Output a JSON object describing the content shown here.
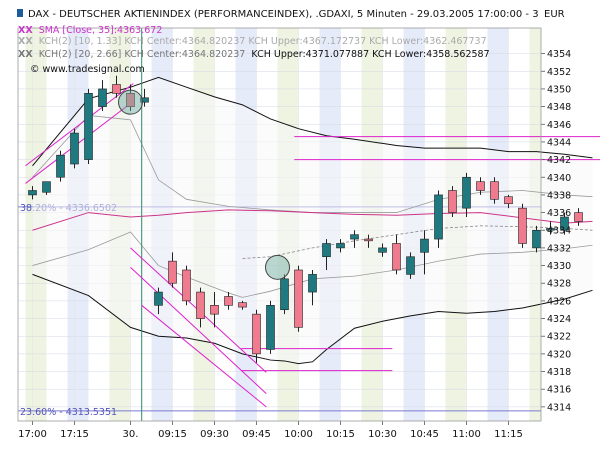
{
  "chart_data": {
    "type": "candlestick",
    "title": "DAX - DEUTSCHER AKTIENINDEX (PERFORMANCEINDEX), .GDAXI, 5 Minuten - 29.03.2005 17:00:00 - 3",
    "currency": "EUR",
    "legend": [
      {
        "label": "SMA [Close, 35]:4363.672",
        "color": "#cc33cc"
      },
      {
        "label": "KCH(2) [10, 1.33] KCH Center:4364.820237 KCH Upper:4367.172737 KCH Lower:4362.467737",
        "color": "#aaaaaa"
      },
      {
        "label": "KCH(2) [20, 2.66] KCH Center:4364.820237",
        "color": "#777777",
        "extra": "KCH Upper:4371.077887 KCH Lower:4358.562587"
      }
    ],
    "watermark": "© www.tradesignal.com",
    "y_ticks": [
      4314,
      4316,
      4318,
      4320,
      4322,
      4324,
      4326,
      4328,
      4330,
      4332,
      4334,
      4336,
      4338,
      4340,
      4342,
      4344,
      4346,
      4348,
      4350,
      4352,
      4354
    ],
    "ylim": [
      4312.4,
      4356.9
    ],
    "x_ticks": [
      {
        "label": "17:00",
        "x": 0
      },
      {
        "label": "17:15",
        "x": 3
      },
      {
        "label": "30.",
        "x": 7
      },
      {
        "label": "09:15",
        "x": 10
      },
      {
        "label": "09:30",
        "x": 13
      },
      {
        "label": "09:45",
        "x": 16
      },
      {
        "label": "10:00",
        "x": 19
      },
      {
        "label": "10:15",
        "x": 22
      },
      {
        "label": "10:30",
        "x": 25
      },
      {
        "label": "10:45",
        "x": 28
      },
      {
        "label": "11:00",
        "x": 31
      },
      {
        "label": "11:15",
        "x": 34
      }
    ],
    "fib_levels": [
      {
        "label": "38.20% - 4336.6502",
        "y": 4336.65
      },
      {
        "label": "23.60% - 4313.5351",
        "y": 4313.54
      }
    ],
    "candles": [
      {
        "o": 4338.0,
        "h": 4339.0,
        "l": 4337.5,
        "c": 4338.5
      },
      {
        "o": 4338.3,
        "h": 4339.5,
        "l": 4338.0,
        "c": 4339.5
      },
      {
        "o": 4340.0,
        "h": 4343.0,
        "l": 4339.5,
        "c": 4342.5
      },
      {
        "o": 4341.5,
        "h": 4345.5,
        "l": 4341.0,
        "c": 4345.0
      },
      {
        "o": 4342.0,
        "h": 4350.0,
        "l": 4341.5,
        "c": 4349.5
      },
      {
        "o": 4348.0,
        "h": 4351.0,
        "l": 4347.5,
        "c": 4350.0
      },
      {
        "o": 4350.5,
        "h": 4351.5,
        "l": 4349.0,
        "c": 4349.5
      },
      {
        "o": 4349.5,
        "h": 4350.5,
        "l": 4347.5,
        "c": 4348.0
      },
      {
        "o": 4348.5,
        "h": 4350.0,
        "l": 4348.0,
        "c": 4349.0
      },
      {
        "o": 4325.5,
        "h": 4327.5,
        "l": 4324.5,
        "c": 4327.0
      },
      {
        "o": 4330.5,
        "h": 4331.5,
        "l": 4327.5,
        "c": 4328.0
      },
      {
        "o": 4329.5,
        "h": 4330.0,
        "l": 4325.5,
        "c": 4326.0
      },
      {
        "o": 4327.0,
        "h": 4327.5,
        "l": 4323.0,
        "c": 4324.0
      },
      {
        "o": 4325.5,
        "h": 4327.0,
        "l": 4323.0,
        "c": 4324.5
      },
      {
        "o": 4326.5,
        "h": 4327.0,
        "l": 4325.0,
        "c": 4325.5
      },
      {
        "o": 4325.8,
        "h": 4326.0,
        "l": 4325.0,
        "c": 4325.3
      },
      {
        "o": 4324.5,
        "h": 4325.0,
        "l": 4319.0,
        "c": 4320.0
      },
      {
        "o": 4320.5,
        "h": 4326.0,
        "l": 4320.0,
        "c": 4325.5
      },
      {
        "o": 4325.0,
        "h": 4329.0,
        "l": 4324.5,
        "c": 4328.5
      },
      {
        "o": 4329.5,
        "h": 4330.0,
        "l": 4322.5,
        "c": 4323.0
      },
      {
        "o": 4327.0,
        "h": 4329.5,
        "l": 4325.5,
        "c": 4329.0
      },
      {
        "o": 4331.0,
        "h": 4333.0,
        "l": 4329.5,
        "c": 4332.5
      },
      {
        "o": 4332.0,
        "h": 4333.0,
        "l": 4331.5,
        "c": 4332.5
      },
      {
        "o": 4333.0,
        "h": 4334.0,
        "l": 4332.0,
        "c": 4333.5
      },
      {
        "o": 4333.0,
        "h": 4333.5,
        "l": 4332.0,
        "c": 4332.8
      },
      {
        "o": 4331.5,
        "h": 4332.5,
        "l": 4331.0,
        "c": 4332.0
      },
      {
        "o": 4332.5,
        "h": 4333.5,
        "l": 4329.0,
        "c": 4329.5
      },
      {
        "o": 4329.0,
        "h": 4331.5,
        "l": 4328.5,
        "c": 4331.0
      },
      {
        "o": 4331.5,
        "h": 4334.0,
        "l": 4329.0,
        "c": 4333.0
      },
      {
        "o": 4333.0,
        "h": 4338.5,
        "l": 4332.0,
        "c": 4338.0
      },
      {
        "o": 4338.5,
        "h": 4339.0,
        "l": 4335.5,
        "c": 4336.0
      },
      {
        "o": 4336.5,
        "h": 4340.5,
        "l": 4335.5,
        "c": 4340.0
      },
      {
        "o": 4339.5,
        "h": 4340.0,
        "l": 4338.0,
        "c": 4338.5
      },
      {
        "o": 4339.5,
        "h": 4340.0,
        "l": 4337.0,
        "c": 4337.5
      },
      {
        "o": 4337.8,
        "h": 4338.0,
        "l": 4336.5,
        "c": 4337.0
      },
      {
        "o": 4336.5,
        "h": 4337.0,
        "l": 4332.0,
        "c": 4332.5
      },
      {
        "o": 4332.0,
        "h": 4334.5,
        "l": 4331.5,
        "c": 4334.0
      },
      {
        "o": 4334.0,
        "h": 4335.0,
        "l": 4333.5,
        "c": 4334.2
      },
      {
        "o": 4334.0,
        "h": 4336.0,
        "l": 4333.5,
        "c": 4335.5
      },
      {
        "o": 4336.0,
        "h": 4336.5,
        "l": 4334.5,
        "c": 4335.0
      }
    ],
    "sma": [
      [
        0,
        4334
      ],
      [
        4,
        4336
      ],
      [
        7,
        4335.5
      ],
      [
        9,
        4335.7
      ],
      [
        11,
        4336
      ],
      [
        14,
        4336.3
      ],
      [
        17,
        4336.2
      ],
      [
        20,
        4336
      ],
      [
        23,
        4335.8
      ],
      [
        26,
        4335.7
      ],
      [
        29,
        4335.9
      ],
      [
        32,
        4336
      ],
      [
        35,
        4335.4
      ],
      [
        38,
        4334.8
      ],
      [
        40,
        4335
      ]
    ],
    "kch_upper_1": [
      [
        0,
        4340
      ],
      [
        4,
        4347
      ],
      [
        7,
        4346.5
      ],
      [
        9,
        4339.7
      ],
      [
        11,
        4337.5
      ],
      [
        14,
        4336.7
      ],
      [
        17,
        4336.3
      ],
      [
        20,
        4336
      ],
      [
        23,
        4336
      ],
      [
        26,
        4336
      ],
      [
        29,
        4337.5
      ],
      [
        32,
        4338.3
      ],
      [
        35,
        4338.5
      ],
      [
        38,
        4338
      ],
      [
        40,
        4337.8
      ]
    ],
    "kch_lower_1": [
      [
        0,
        4330
      ],
      [
        4,
        4331.8
      ],
      [
        7,
        4333.8
      ],
      [
        9,
        4330
      ],
      [
        11,
        4328.7
      ],
      [
        14,
        4326.9
      ],
      [
        15,
        4326.4
      ],
      [
        17,
        4327.1
      ],
      [
        20,
        4328.5
      ],
      [
        23,
        4328.8
      ],
      [
        26,
        4329.5
      ],
      [
        29,
        4330.5
      ],
      [
        32,
        4331.3
      ],
      [
        35,
        4331.5
      ],
      [
        38,
        4331.9
      ],
      [
        40,
        4332.3
      ]
    ],
    "kch_center": [
      [
        15,
        4330.8
      ],
      [
        17,
        4331
      ],
      [
        20,
        4332
      ],
      [
        23,
        4332.8
      ],
      [
        26,
        4333.5
      ],
      [
        29,
        4334.2
      ],
      [
        32,
        4334.5
      ],
      [
        35,
        4334.4
      ],
      [
        38,
        4334.2
      ],
      [
        40,
        4334
      ]
    ],
    "kch_upper_2": [
      [
        0,
        4341.3
      ],
      [
        4,
        4348.9
      ],
      [
        7,
        4350.2
      ],
      [
        9,
        4351.3
      ],
      [
        11,
        4350.2
      ],
      [
        13,
        4349.1
      ],
      [
        15,
        4348.2
      ],
      [
        17,
        4346.6
      ],
      [
        19,
        4345.5
      ],
      [
        21,
        4344.7
      ],
      [
        23,
        4344.3
      ],
      [
        26,
        4343.6
      ],
      [
        28,
        4343.3
      ],
      [
        30,
        4343.3
      ],
      [
        32,
        4343.3
      ],
      [
        34,
        4342.9
      ],
      [
        36,
        4342.9
      ],
      [
        38,
        4342.6
      ],
      [
        40,
        4342.2
      ]
    ],
    "kch_lower_2": [
      [
        0,
        4329
      ],
      [
        4,
        4326.6
      ],
      [
        7,
        4323
      ],
      [
        9,
        4322
      ],
      [
        11,
        4321.8
      ],
      [
        13,
        4321.2
      ],
      [
        15,
        4320
      ],
      [
        17,
        4319.3
      ],
      [
        18,
        4319.2
      ],
      [
        19,
        4318.9
      ],
      [
        20,
        4319.1
      ],
      [
        21,
        4320.5
      ],
      [
        23,
        4322.9
      ],
      [
        25,
        4323.7
      ],
      [
        27,
        4324.3
      ],
      [
        29,
        4324.8
      ],
      [
        31,
        4324.6
      ],
      [
        33,
        4324.8
      ],
      [
        35,
        4325.2
      ],
      [
        38,
        4326.2
      ],
      [
        40,
        4327.2
      ]
    ],
    "trend_lines": [
      {
        "x1": -0.5,
        "y1": 4341.3,
        "x2": 7.2,
        "y2": 4350.6
      },
      {
        "x1": -0.5,
        "y1": 4339.3,
        "x2": 7.2,
        "y2": 4348.6
      },
      {
        "x1": 7.0,
        "y1": 4332.0,
        "x2": 16.7,
        "y2": 4317.9
      },
      {
        "x1": 7.0,
        "y1": 4329.8,
        "x2": 16.7,
        "y2": 4315.5
      },
      {
        "x1": 7.8,
        "y1": 4325.5,
        "x2": 16.7,
        "y2": 4314.0
      },
      {
        "x1": 14.9,
        "y1": 4320.6,
        "x2": 25.7,
        "y2": 4320.6
      },
      {
        "x1": 14.9,
        "y1": 4318.1,
        "x2": 25.7,
        "y2": 4318.1
      },
      {
        "x1": 18.7,
        "y1": 4344.6,
        "x2": 40.6,
        "y2": 4344.6
      },
      {
        "x1": 18.7,
        "y1": 4342.0,
        "x2": 40.6,
        "y2": 4342.0
      }
    ],
    "circles": [
      {
        "x": 7.0,
        "y": 4348.5
      },
      {
        "x": 17.5,
        "y": 4329.8
      }
    ],
    "vertical_marker_x": 7.8,
    "grid": true
  }
}
